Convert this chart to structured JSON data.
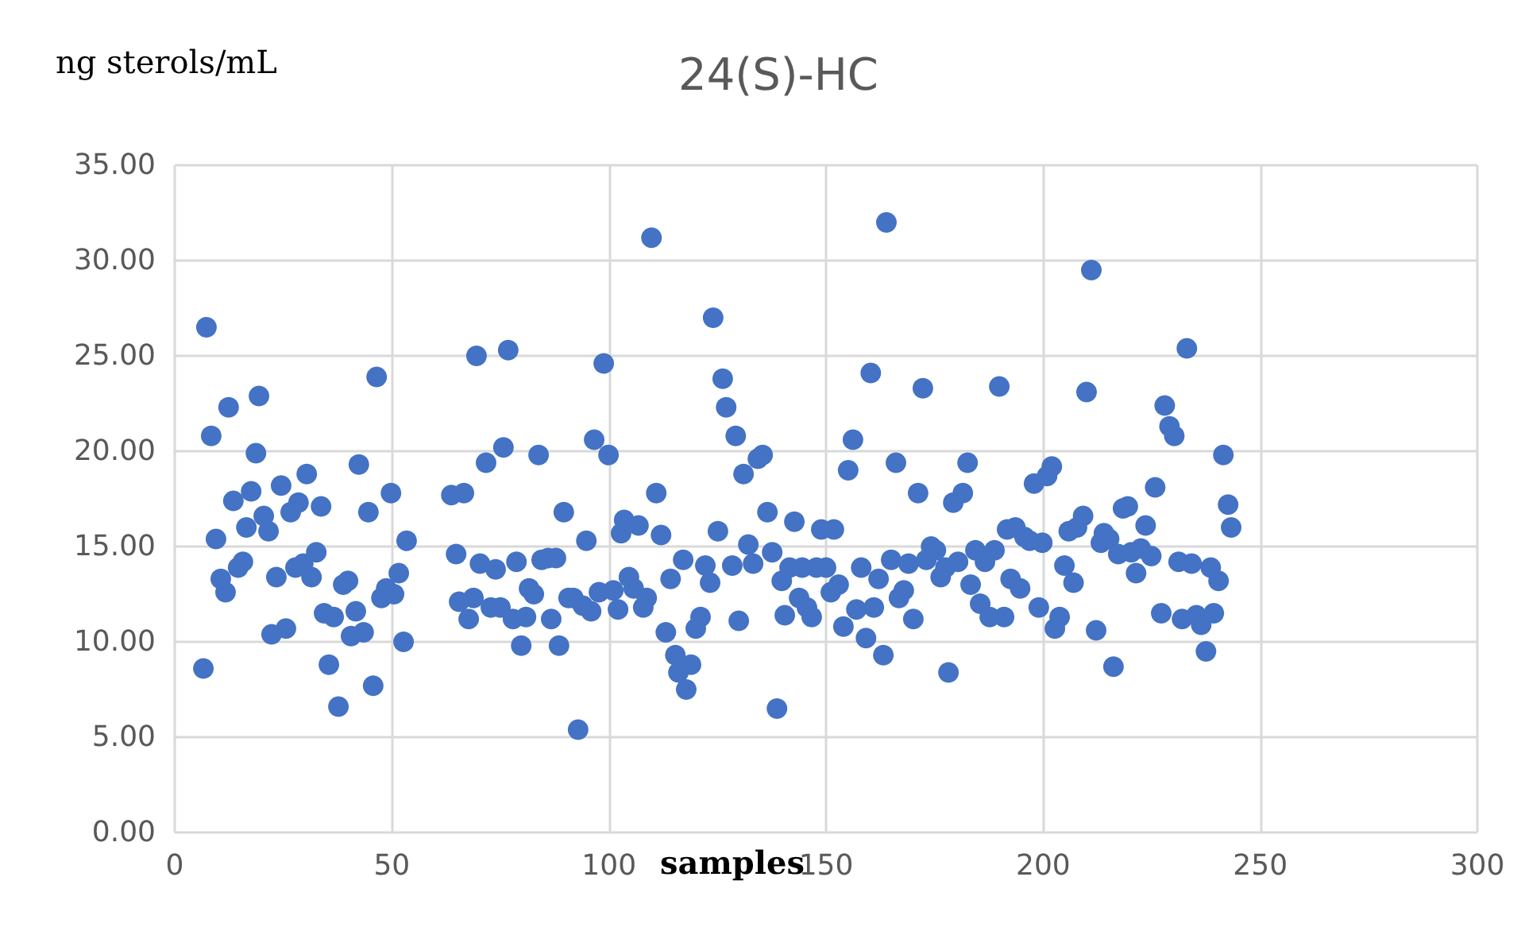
{
  "chart_data": {
    "type": "scatter",
    "title": "24(S)-HC",
    "ylabel": "ng sterols/mL",
    "xlabel": "samples",
    "marker": "circle",
    "grid": true,
    "xlim": [
      0,
      300
    ],
    "xticks": [
      0,
      50,
      100,
      150,
      200,
      250,
      300
    ],
    "ylim": [
      0,
      35
    ],
    "yticks": [
      {
        "value": 0,
        "label": "0.00"
      },
      {
        "value": 5,
        "label": "5.00"
      },
      {
        "value": 10,
        "label": "10.00"
      },
      {
        "value": 15,
        "label": "15.00"
      },
      {
        "value": 20,
        "label": "20.00"
      },
      {
        "value": 25,
        "label": "25.00"
      },
      {
        "value": 30,
        "label": "30.00"
      },
      {
        "value": 35,
        "label": "35.00"
      }
    ],
    "series": [
      {
        "color": "#4472c4",
        "x": [
          6.6,
          7.3,
          8.4,
          9.5,
          10.6,
          11.7,
          12.4,
          13.5,
          14.6,
          15.7,
          16.5,
          17.6,
          18.7,
          19.4,
          20.5,
          21.6,
          22.3,
          23.4,
          24.5,
          25.6,
          26.7,
          27.8,
          28.5,
          29.6,
          30.4,
          31.5,
          32.6,
          33.7,
          34.4,
          35.5,
          36.6,
          37.7,
          38.8,
          39.9,
          40.6,
          41.7,
          42.4,
          43.5,
          44.6,
          45.7,
          46.5,
          47.6,
          48.7,
          49.8,
          50.5,
          51.6,
          52.7,
          53.4,
          63.7,
          64.8,
          65.5,
          66.6,
          67.7,
          68.8,
          69.5,
          70.3,
          71.7,
          72.8,
          73.9,
          75.0,
          75.7,
          76.8,
          77.9,
          78.7,
          79.8,
          80.9,
          81.6,
          82.7,
          83.8,
          84.5,
          86.0,
          86.7,
          87.8,
          88.5,
          89.6,
          90.7,
          91.8,
          92.9,
          94.0,
          94.8,
          95.9,
          96.6,
          97.7,
          98.8,
          99.9,
          101.0,
          102.1,
          102.8,
          103.5,
          104.6,
          105.7,
          106.8,
          107.9,
          108.7,
          109.8,
          110.9,
          112.0,
          113.1,
          114.2,
          115.3,
          116.0,
          117.1,
          117.8,
          118.9,
          120.0,
          121.1,
          122.2,
          123.3,
          124.0,
          125.1,
          126.2,
          127.0,
          128.4,
          129.2,
          129.9,
          131.0,
          132.1,
          133.2,
          134.3,
          135.4,
          136.5,
          137.6,
          138.7,
          139.8,
          140.5,
          141.6,
          142.7,
          143.8,
          144.5,
          145.6,
          146.7,
          147.8,
          148.9,
          150.0,
          151.1,
          151.8,
          152.9,
          154.0,
          155.1,
          156.2,
          157.0,
          158.1,
          159.2,
          160.3,
          161.0,
          162.1,
          163.2,
          163.9,
          165.0,
          166.1,
          166.8,
          167.9,
          169.0,
          170.1,
          171.2,
          172.3,
          173.1,
          174.2,
          175.3,
          176.4,
          177.5,
          178.2,
          179.3,
          180.4,
          181.5,
          182.6,
          183.3,
          184.4,
          185.5,
          186.6,
          187.7,
          188.8,
          189.9,
          191.0,
          191.7,
          192.5,
          193.6,
          194.7,
          195.7,
          196.9,
          197.9,
          199.0,
          199.8,
          200.9,
          202.0,
          202.7,
          203.8,
          204.9,
          205.9,
          207.0,
          207.8,
          209.2,
          210.0,
          211.1,
          212.2,
          213.3,
          214.0,
          215.2,
          216.2,
          217.3,
          218.4,
          219.5,
          220.3,
          221.4,
          222.5,
          223.6,
          224.9,
          225.8,
          227.2,
          228.0,
          229.1,
          230.2,
          231.2,
          232.0,
          233.1,
          234.2,
          235.3,
          236.4,
          237.5,
          238.6,
          239.3,
          240.4,
          241.5,
          242.6,
          243.3
        ],
        "values": [
          8.6,
          26.5,
          20.8,
          15.4,
          13.3,
          12.6,
          22.3,
          17.4,
          13.9,
          14.2,
          16.0,
          17.9,
          19.9,
          22.9,
          16.6,
          15.8,
          10.4,
          13.4,
          18.2,
          10.7,
          16.8,
          13.9,
          17.3,
          14.1,
          18.8,
          13.4,
          14.7,
          17.1,
          11.5,
          8.8,
          11.3,
          6.6,
          13.0,
          13.2,
          10.3,
          11.6,
          19.3,
          10.5,
          16.8,
          7.7,
          23.9,
          12.3,
          12.8,
          17.8,
          12.5,
          13.6,
          10.0,
          15.3,
          17.7,
          14.6,
          12.1,
          17.8,
          11.2,
          12.3,
          25.0,
          14.1,
          19.4,
          11.8,
          13.8,
          11.8,
          20.2,
          25.3,
          11.2,
          14.2,
          9.8,
          11.3,
          12.8,
          12.5,
          19.8,
          14.3,
          14.4,
          11.2,
          14.4,
          9.8,
          16.8,
          12.3,
          12.3,
          5.4,
          11.9,
          15.3,
          11.6,
          20.6,
          12.6,
          24.6,
          19.8,
          12.7,
          11.7,
          15.7,
          16.4,
          13.4,
          12.8,
          16.1,
          11.8,
          12.3,
          31.2,
          17.8,
          15.6,
          10.5,
          13.3,
          9.3,
          8.4,
          14.3,
          7.5,
          8.8,
          10.7,
          11.3,
          14.0,
          13.1,
          27.0,
          15.8,
          23.8,
          22.3,
          14.0,
          20.8,
          11.1,
          18.8,
          15.1,
          14.1,
          19.6,
          19.8,
          16.8,
          14.7,
          6.5,
          13.2,
          11.4,
          13.9,
          16.3,
          12.3,
          13.9,
          11.8,
          11.3,
          13.9,
          15.9,
          13.9,
          12.6,
          15.9,
          13.0,
          10.8,
          19.0,
          20.6,
          11.7,
          13.9,
          10.2,
          24.1,
          11.8,
          13.3,
          9.3,
          32.0,
          14.3,
          19.4,
          12.3,
          12.7,
          14.1,
          11.2,
          17.8,
          23.3,
          14.3,
          15.0,
          14.8,
          13.4,
          13.9,
          8.4,
          17.3,
          14.2,
          17.8,
          19.4,
          13.0,
          14.8,
          12.0,
          14.2,
          11.3,
          14.8,
          23.4,
          11.3,
          15.9,
          13.3,
          16.0,
          12.8,
          15.5,
          15.3,
          18.3,
          11.8,
          15.2,
          18.7,
          19.2,
          10.7,
          11.3,
          14.0,
          15.8,
          13.1,
          16.0,
          16.6,
          23.1,
          29.5,
          10.6,
          15.2,
          15.7,
          15.4,
          8.7,
          14.6,
          17.0,
          17.1,
          14.7,
          13.6,
          14.9,
          16.1,
          14.5,
          18.1,
          11.5,
          22.4,
          21.3,
          20.8,
          14.2,
          11.2,
          25.4,
          14.1,
          11.4,
          10.9,
          9.5,
          13.9,
          11.5,
          13.2,
          19.8,
          17.2,
          16.0
        ]
      }
    ]
  }
}
